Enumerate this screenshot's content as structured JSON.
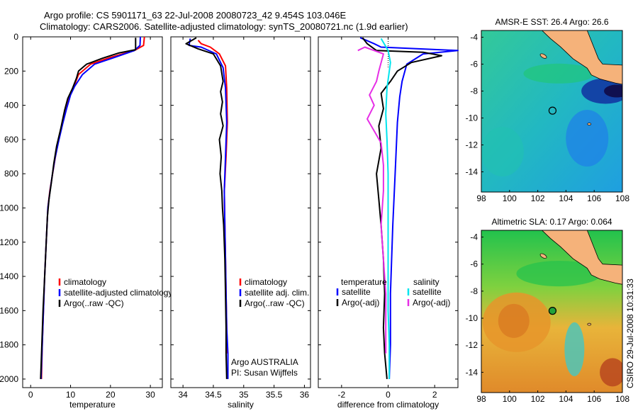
{
  "header": {
    "line1": "Argo profile: CS 5901171_63 22-Jul-2008 20080723_42 9.454S 103.046E",
    "line2": "Climatology: CARS2006. Satellite-adjusted climatology: synTS_20080721.nc (1.9d earlier)"
  },
  "side_label": "CSIRO 29-Jul-2008 10:31:33",
  "colors": {
    "climatology": "#ff0000",
    "satellite": "#0000ff",
    "argo": "#000000",
    "sal_satellite": "#00e5ee",
    "sal_argo": "#e62ee6",
    "land": "#f5b27a",
    "marker": "#22a33a"
  },
  "chart_data": [
    {
      "type": "line",
      "xlabel": "temperature",
      "ylabel": "",
      "xlim": [
        -2,
        33
      ],
      "ylim": [
        2050,
        0
      ],
      "xticks": [
        "0",
        "10",
        "20",
        "30"
      ],
      "xtick_values": [
        0,
        10,
        20,
        30
      ],
      "yticks": [
        "0",
        "200",
        "400",
        "600",
        "800",
        "1000",
        "1200",
        "1400",
        "1600",
        "1800",
        "2000"
      ],
      "ytick_values": [
        0,
        200,
        400,
        600,
        800,
        1000,
        1200,
        1400,
        1600,
        1800,
        2000
      ],
      "legend": [
        "climatology",
        "satellite-adjusted climatology",
        "Argo(..raw -QC)"
      ],
      "series": [
        {
          "name": "climatology",
          "color": "#ff0000",
          "points": [
            [
              28.5,
              0
            ],
            [
              28.3,
              50
            ],
            [
              26,
              80
            ],
            [
              20,
              120
            ],
            [
              15,
              160
            ],
            [
              12,
              220
            ],
            [
              11,
              280
            ],
            [
              10,
              330
            ],
            [
              9,
              400
            ],
            [
              8,
              500
            ],
            [
              7,
              600
            ],
            [
              6.2,
              700
            ],
            [
              5.5,
              800
            ],
            [
              4.8,
              900
            ],
            [
              4.3,
              1000
            ],
            [
              3.9,
              1200
            ],
            [
              3.5,
              1400
            ],
            [
              3.2,
              1600
            ],
            [
              2.9,
              1800
            ],
            [
              2.7,
              2000
            ]
          ]
        },
        {
          "name": "satellite-adjusted climatology",
          "color": "#0000ff",
          "points": [
            [
              27.5,
              0
            ],
            [
              27.4,
              50
            ],
            [
              26,
              80
            ],
            [
              21,
              120
            ],
            [
              16,
              160
            ],
            [
              13,
              220
            ],
            [
              11,
              290
            ],
            [
              10,
              340
            ],
            [
              9,
              420
            ],
            [
              8,
              510
            ],
            [
              7,
              610
            ],
            [
              6.1,
              710
            ],
            [
              5.4,
              810
            ],
            [
              4.8,
              910
            ],
            [
              4.3,
              1000
            ],
            [
              3.9,
              1200
            ],
            [
              3.5,
              1400
            ],
            [
              3.2,
              1600
            ],
            [
              2.9,
              1800
            ],
            [
              2.6,
              2000
            ]
          ]
        },
        {
          "name": "Argo(..raw -QC)",
          "color": "#000000",
          "points": [
            [
              26.3,
              5
            ],
            [
              26.3,
              40
            ],
            [
              26.3,
              75
            ],
            [
              22,
              95
            ],
            [
              18,
              125
            ],
            [
              14,
              160
            ],
            [
              12,
              200
            ],
            [
              11.5,
              240
            ],
            [
              10.5,
              300
            ],
            [
              9.3,
              360
            ],
            [
              8.5,
              430
            ],
            [
              7.5,
              540
            ],
            [
              6.5,
              640
            ],
            [
              5.8,
              740
            ],
            [
              5.2,
              850
            ],
            [
              4.6,
              950
            ],
            [
              4.2,
              1050
            ],
            [
              3.9,
              1200
            ],
            [
              3.5,
              1400
            ],
            [
              3.1,
              1600
            ],
            [
              2.8,
              1800
            ],
            [
              2.5,
              2000
            ]
          ]
        }
      ]
    },
    {
      "type": "line",
      "xlabel": "salinity",
      "ylabel": "",
      "xlim": [
        33.8,
        36.1
      ],
      "ylim": [
        2050,
        0
      ],
      "xticks": [
        "34",
        "34.5",
        "35",
        "35.5",
        "36"
      ],
      "xtick_values": [
        34,
        34.5,
        35,
        35.5,
        36
      ],
      "legend": [
        "climatology",
        "satellite adj. clim.",
        "Argo(..raw -QC)"
      ],
      "annotations": [
        "Argo AUSTRALIA",
        "PI: Susan Wijffels"
      ],
      "series": [
        {
          "name": "climatology",
          "color": "#ff0000",
          "points": [
            [
              34.25,
              20
            ],
            [
              34.3,
              40
            ],
            [
              34.45,
              60
            ],
            [
              34.6,
              100
            ],
            [
              34.7,
              170
            ],
            [
              34.72,
              300
            ],
            [
              34.73,
              500
            ],
            [
              34.71,
              700
            ],
            [
              34.68,
              900
            ],
            [
              34.69,
              1100
            ],
            [
              34.7,
              1300
            ],
            [
              34.71,
              1500
            ],
            [
              34.72,
              1700
            ],
            [
              34.73,
              1850
            ]
          ]
        },
        {
          "name": "satellite adj. clim.",
          "color": "#0000ff",
          "points": [
            [
              34.12,
              10
            ],
            [
              34.1,
              50
            ],
            [
              34.3,
              60
            ],
            [
              34.55,
              100
            ],
            [
              34.66,
              180
            ],
            [
              34.7,
              300
            ],
            [
              34.72,
              500
            ],
            [
              34.7,
              700
            ],
            [
              34.68,
              900
            ],
            [
              34.69,
              1100
            ],
            [
              34.7,
              1300
            ],
            [
              34.71,
              1500
            ],
            [
              34.72,
              1700
            ],
            [
              34.74,
              1850
            ],
            [
              34.74,
              2000
            ]
          ]
        },
        {
          "name": "Argo(..raw -QC)",
          "color": "#000000",
          "points": [
            [
              34.22,
              5
            ],
            [
              34.05,
              40
            ],
            [
              34.25,
              70
            ],
            [
              34.5,
              100
            ],
            [
              34.62,
              170
            ],
            [
              34.66,
              260
            ],
            [
              34.62,
              320
            ],
            [
              34.65,
              380
            ],
            [
              34.62,
              450
            ],
            [
              34.66,
              520
            ],
            [
              34.6,
              600
            ],
            [
              34.63,
              700
            ],
            [
              34.61,
              800
            ],
            [
              34.64,
              900
            ],
            [
              34.65,
              1000
            ],
            [
              34.67,
              1100
            ],
            [
              34.69,
              1300
            ],
            [
              34.7,
              1500
            ],
            [
              34.71,
              1700
            ],
            [
              34.71,
              1850
            ],
            [
              34.72,
              2000
            ]
          ]
        }
      ]
    },
    {
      "type": "line",
      "xlabel": "difference from climatology",
      "ylabel": "",
      "xlim": [
        -3,
        3
      ],
      "ylim": [
        2050,
        0
      ],
      "xticks": [
        "-2",
        "0",
        "2"
      ],
      "xtick_values": [
        -2,
        0,
        2
      ],
      "legend": [
        "temperature",
        "satellite",
        "Argo(-adj)",
        "salinity",
        "satellite",
        "Argo(-adj)"
      ],
      "series": [
        {
          "name": "temperature satellite",
          "color": "#0000ff",
          "points": [
            [
              -1.2,
              5
            ],
            [
              -0.6,
              40
            ],
            [
              -0.3,
              60
            ],
            [
              3,
              80
            ],
            [
              1.5,
              100
            ],
            [
              0.8,
              160
            ],
            [
              0.6,
              260
            ],
            [
              0.5,
              350
            ],
            [
              0.4,
              500
            ],
            [
              0.3,
              800
            ],
            [
              0.2,
              1100
            ],
            [
              0.1,
              1500
            ],
            [
              0.1,
              1800
            ],
            [
              0.05,
              2000
            ]
          ]
        },
        {
          "name": "temperature Argo(-adj)",
          "color": "#000000",
          "points": [
            [
              -1.1,
              5
            ],
            [
              -0.9,
              40
            ],
            [
              -0.5,
              80
            ],
            [
              1.5,
              90
            ],
            [
              2.3,
              110
            ],
            [
              1,
              150
            ],
            [
              0.4,
              200
            ],
            [
              0.1,
              260
            ],
            [
              -0.3,
              330
            ],
            [
              -0.2,
              420
            ],
            [
              -0.4,
              520
            ],
            [
              -0.3,
              650
            ],
            [
              -0.5,
              800
            ],
            [
              -0.4,
              950
            ],
            [
              -0.3,
              1100
            ],
            [
              -0.2,
              1300
            ],
            [
              -0.15,
              1500
            ],
            [
              -0.2,
              1700
            ],
            [
              -0.15,
              1850
            ],
            [
              -0.05,
              2000
            ]
          ]
        },
        {
          "name": "salinity satellite",
          "color": "#00e5ee",
          "points": [
            [
              -0.3,
              10
            ],
            [
              0,
              80
            ],
            [
              0.1,
              150
            ],
            [
              -0.05,
              300
            ],
            [
              -0.1,
              450
            ],
            [
              -0.05,
              600
            ],
            [
              0.0,
              800
            ],
            [
              0.0,
              1000
            ],
            [
              0.0,
              1300
            ],
            [
              0.0,
              1600
            ],
            [
              0.05,
              1800
            ],
            [
              0.05,
              2000
            ]
          ]
        },
        {
          "name": "salinity Argo(-adj)",
          "color": "#e62ee6",
          "points": [
            [
              -1.3,
              80
            ],
            [
              -1,
              60
            ],
            [
              -0.2,
              100
            ],
            [
              -0.4,
              200
            ],
            [
              -0.5,
              260
            ],
            [
              -0.8,
              340
            ],
            [
              -0.6,
              400
            ],
            [
              -0.9,
              480
            ],
            [
              -0.6,
              550
            ],
            [
              -0.3,
              620
            ],
            [
              -0.2,
              750
            ],
            [
              -0.2,
              900
            ],
            [
              -0.3,
              1100
            ],
            [
              -0.2,
              1300
            ],
            [
              -0.1,
              1500
            ],
            [
              -0.1,
              1700
            ],
            [
              -0.1,
              1850
            ]
          ]
        }
      ]
    },
    {
      "type": "heatmap",
      "title": "AMSR-E SST: 26.4 Argo: 26.6",
      "xlim": [
        98,
        108
      ],
      "ylim": [
        -15.5,
        -3.5
      ],
      "xticks": [
        "98",
        "100",
        "102",
        "104",
        "106",
        "108"
      ],
      "xtick_values": [
        98,
        100,
        102,
        104,
        106,
        108
      ],
      "yticks": [
        "-4",
        "-6",
        "-8",
        "-10",
        "-12",
        "-14"
      ],
      "ytick_values": [
        -4,
        -6,
        -8,
        -10,
        -12,
        -14
      ],
      "marker": {
        "lon": 103.046,
        "lat": -9.454
      }
    },
    {
      "type": "heatmap",
      "title": "Altimetric SLA: 0.17 Argo: 0.064",
      "xlim": [
        98,
        108
      ],
      "ylim": [
        -15.5,
        -3.5
      ],
      "xticks": [
        "98",
        "100",
        "102",
        "104",
        "106",
        "108"
      ],
      "xtick_values": [
        98,
        100,
        102,
        104,
        106,
        108
      ],
      "yticks": [
        "-4",
        "-6",
        "-8",
        "-10",
        "-12",
        "-14"
      ],
      "ytick_values": [
        -4,
        -6,
        -8,
        -10,
        -12,
        -14
      ],
      "marker": {
        "lon": 103.046,
        "lat": -9.454
      }
    }
  ]
}
